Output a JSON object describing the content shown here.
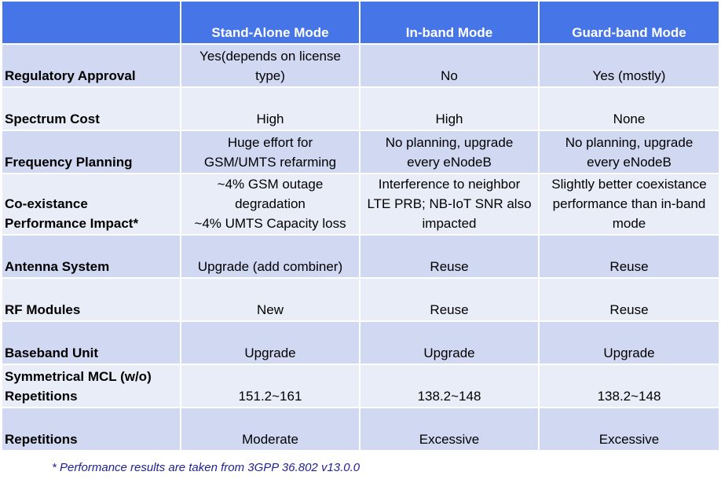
{
  "table": {
    "headers": [
      "",
      "Stand-Alone Mode",
      "In-band Mode",
      "Guard-band Mode"
    ],
    "rows": [
      {
        "label": "Regulatory Approval",
        "values": [
          "Yes(depends on license\ntype)",
          "No",
          "Yes (mostly)"
        ]
      },
      {
        "label": "Spectrum Cost",
        "values": [
          "High",
          "High",
          "None"
        ]
      },
      {
        "label": "Frequency Planning",
        "values": [
          "Huge effort for\nGSM/UMTS refarming",
          "No planning, upgrade\nevery eNodeB",
          "No planning, upgrade\nevery eNodeB"
        ]
      },
      {
        "label": "Co-existance\nPerformance Impact*",
        "values": [
          "~4% GSM outage\ndegradation\n~4% UMTS Capacity loss",
          "Interference to neighbor\nLTE PRB; NB-IoT SNR also\nimpacted",
          "Slightly better coexistance\nperformance than in-band\nmode"
        ]
      },
      {
        "label": "Antenna System",
        "values": [
          "Upgrade (add combiner)",
          "Reuse",
          "Reuse"
        ]
      },
      {
        "label": "RF Modules",
        "values": [
          "New",
          "Reuse",
          "Reuse"
        ]
      },
      {
        "label": "Baseband Unit",
        "values": [
          "Upgrade",
          "Upgrade",
          "Upgrade"
        ]
      },
      {
        "label": "Symmetrical MCL (w/o)\nRepetitions",
        "values": [
          "151.2~161",
          "138.2~148",
          "138.2~148"
        ]
      },
      {
        "label": "Repetitions",
        "values": [
          "Moderate",
          "Excessive",
          "Excessive"
        ]
      }
    ]
  },
  "footnote": "* Performance results are taken from 3GPP 36.802 v13.0.0",
  "colors": {
    "header_bg": "#4675e8",
    "row_dark": "#d0d8f2",
    "row_light": "#e9edf8",
    "footnote_text": "#1f1f8f"
  }
}
